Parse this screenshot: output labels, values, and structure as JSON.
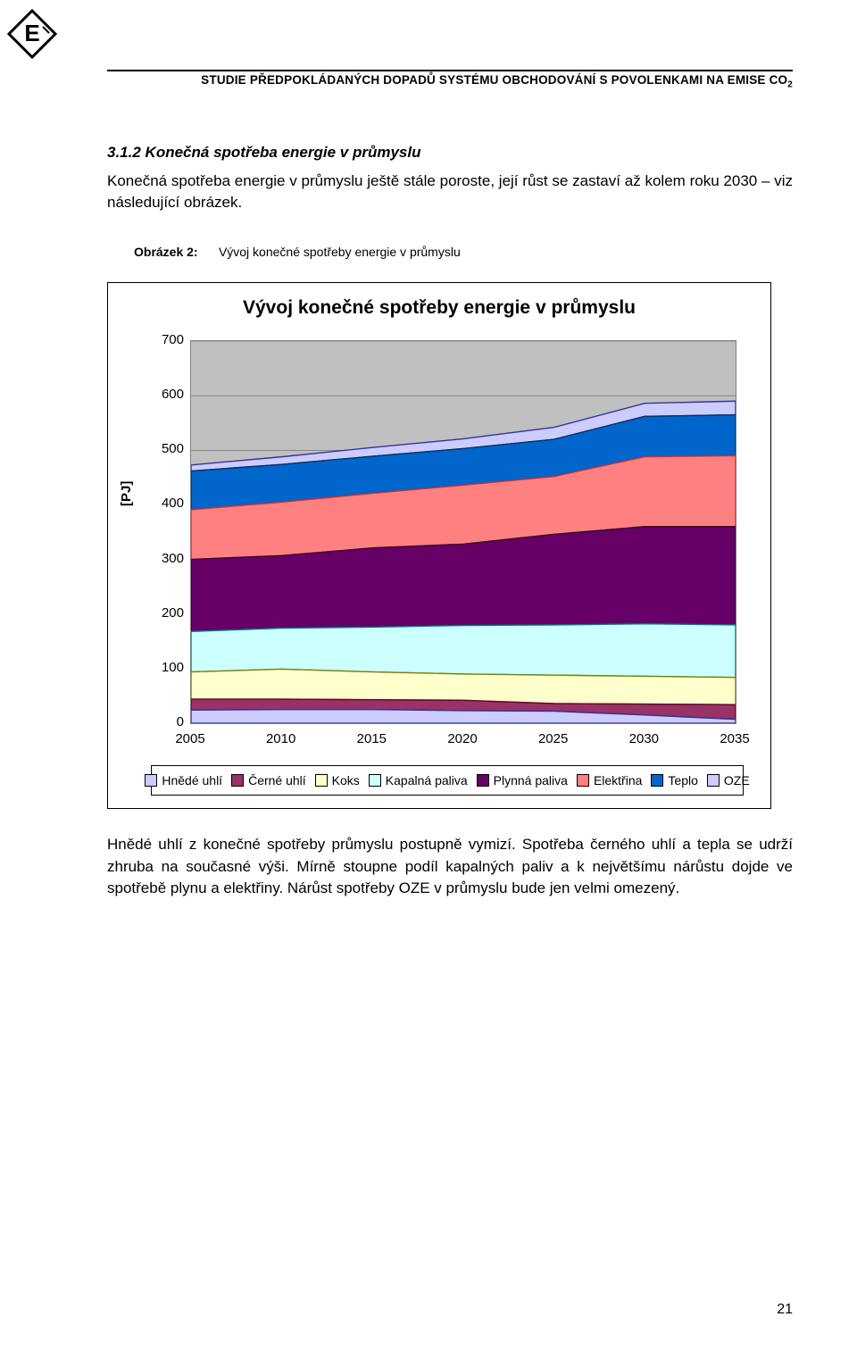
{
  "header": {
    "running_title_html": "STUDIE PŘEDPOKLÁDANÝCH DOPADŮ SYSTÉMU OBCHODOVÁNÍ S POVOLENKAMI NA EMISE CO",
    "running_title_sub": "2"
  },
  "section": {
    "number": "3.1.2",
    "title": "Konečná spotřeba energie v průmyslu",
    "intro": "Konečná spotřeba energie v průmyslu ještě stále poroste, její růst se zastaví až kolem roku 2030 – viz následující obrázek."
  },
  "figure": {
    "label": "Obrázek 2:",
    "caption": "Vývoj konečné spotřeby energie v průmyslu"
  },
  "chart": {
    "type": "area-stacked",
    "title": "Vývoj konečné spotřeby energie v průmyslu",
    "ylabel": "[PJ]",
    "title_fontsize": 21,
    "label_fontsize": 15,
    "background_color": "#c0c0c0",
    "plot_border_color": "#808080",
    "grid_color": "#666666",
    "ylim": [
      0,
      700
    ],
    "ytick_step": 100,
    "yticks": [
      0,
      100,
      200,
      300,
      400,
      500,
      600,
      700
    ],
    "xticks": [
      2005,
      2010,
      2015,
      2020,
      2025,
      2030,
      2035
    ],
    "xlim": [
      2005,
      2035
    ],
    "series": [
      {
        "name": "Hnědé uhlí",
        "color": "#ccccff",
        "edge": "#333399"
      },
      {
        "name": "Černé uhlí",
        "color": "#993366",
        "edge": "#660033"
      },
      {
        "name": "Koks",
        "color": "#ffffcc",
        "edge": "#808000"
      },
      {
        "name": "Kapalná paliva",
        "color": "#ccffff",
        "edge": "#008080"
      },
      {
        "name": "Plynná paliva",
        "color": "#660066",
        "edge": "#330033"
      },
      {
        "name": "Elektřina",
        "color": "#ff8080",
        "edge": "#cc3333"
      },
      {
        "name": "Teplo",
        "color": "#0066cc",
        "edge": "#003366"
      },
      {
        "name": "OZE",
        "color": "#ccccff",
        "edge": "#333399"
      }
    ],
    "cumulative_top_PJ": {
      "Hnědé uhlí": [
        24,
        25,
        25,
        23,
        22,
        15,
        7
      ],
      "Černé uhlí": [
        44,
        44,
        43,
        42,
        36,
        35,
        34
      ],
      "Koks": [
        94,
        99,
        94,
        90,
        88,
        86,
        84
      ],
      "Kapalná paliva": [
        168,
        174,
        176,
        179,
        180,
        182,
        180
      ],
      "Plynná paliva": [
        300,
        307,
        321,
        328,
        346,
        360,
        360
      ],
      "Elektřina": [
        391,
        405,
        421,
        436,
        452,
        488,
        490
      ],
      "Teplo": [
        462,
        474,
        489,
        503,
        520,
        562,
        565
      ],
      "OZE": [
        473,
        488,
        505,
        521,
        542,
        586,
        590
      ]
    }
  },
  "conclusion": "Hnědé uhlí z konečné spotřeby průmyslu postupně vymizí. Spotřeba černého uhlí a tepla se udrží zhruba na současné výši. Mírně stoupne podíl kapalných paliv a k největšímu nárůstu dojde ve spotřebě plynu a elektřiny. Nárůst spotřeby OZE v průmyslu bude jen velmi omezený.",
  "page_number": "21",
  "logo_letter": "E"
}
